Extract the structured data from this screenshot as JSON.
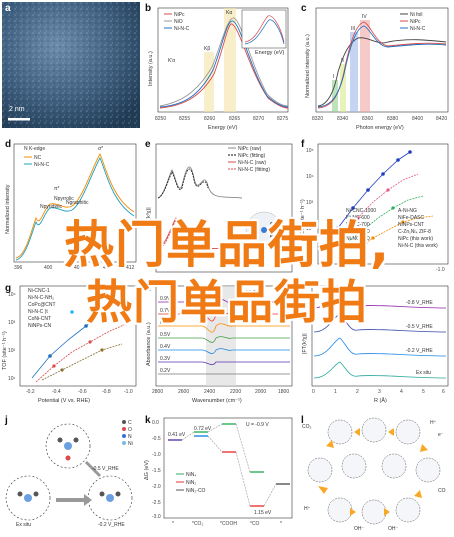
{
  "panels": {
    "a": {
      "label": "a",
      "scalebar": "2 nm"
    },
    "b": {
      "label": "b",
      "legend": [
        "NiPc",
        "NiO",
        "Ni-N-C"
      ],
      "peaks": [
        "Kα",
        "Kβ"
      ],
      "peak_labels": {
        "k_beta": "Kβ",
        "k_alpha": "Kα",
        "k_alpha_prime": "K'α"
      },
      "xlabel": "Energy (eV)",
      "ylabel": "Intensity (a.u.)",
      "xticks": [
        "8250",
        "8255",
        "8260",
        "8265",
        "8270",
        "8275"
      ],
      "inset_xlabel": "Energy (eV)"
    },
    "c": {
      "label": "c",
      "legend": [
        "Ni foil",
        "NiPc",
        "Ni-N-C"
      ],
      "roman": [
        "I",
        "II",
        "III",
        "IV"
      ],
      "xlabel": "Photon energy (eV)",
      "ylabel": "Normalized intensity (a.u.)",
      "xticks": [
        "8320",
        "8340",
        "8360",
        "8380",
        "8400",
        "8420"
      ]
    },
    "d": {
      "label": "d",
      "title": "N K-edge",
      "legend": [
        "NC",
        "Ni-N-C"
      ],
      "annotations": [
        "π*",
        "σ*",
        "Npyridinic",
        "Npyrrolic",
        "Ngraphitic"
      ],
      "xticks": [
        "396",
        "400",
        "404",
        "408",
        "412"
      ],
      "ylabel": "Normalized intensity"
    },
    "e": {
      "label": "e",
      "legend": [
        "NiPc (raw)",
        "NiPc (fitting)",
        "Ni-N-C (raw)",
        "Ni-N-C (fitting)"
      ],
      "ylabel": "|FT(k³χ)|"
    },
    "f": {
      "label": "f",
      "ylabel": "TOF (site⁻¹ h⁻¹)",
      "yticks": [
        "10⁵",
        "10⁴",
        "10³",
        "10²",
        "10¹"
      ],
      "xticks": [
        "-1.0"
      ],
      "legend_left": [
        "Ni-CNC-1000",
        "Ni-NC-600",
        "Ni-NC-700",
        "Ni-NC-800",
        "Ni-NC-900",
        "NiPc/CNT"
      ],
      "legend_right": [
        "A-Ni-NG",
        "NiFe-DASC",
        "NiNPs-CNT",
        "C-Zn₁Ni₄ ZIF-8",
        "NiPc (this work)",
        "Ni-N-C (this work)"
      ]
    },
    "g": {
      "label": "g",
      "legend": [
        "Ni-CNC-1",
        "Ni-N-C-NH₂",
        "CoPc@CNT",
        "Ni-N-C (t",
        "CoNi-CNT",
        "NiNPs-CN"
      ],
      "ylabel": "TOF (site⁻¹ h⁻¹)",
      "xlabel": "Potential (V vs. RHE)",
      "xticks": [
        "-0.2",
        "-0.4",
        "-0.6",
        "-0.8",
        "-1.0"
      ],
      "yticks": [
        "10⁴",
        "10³",
        "10²",
        "10¹"
      ]
    },
    "h": {
      "label": "h",
      "trace_labels": [
        "0.9V",
        "0.7V",
        "0.6V",
        "0.5V",
        "0.4V",
        "0.3V",
        "0.2V"
      ],
      "band_label": "Ni-CO",
      "ylabel": "Absorbance (a.u.)",
      "xlabel": "Wavenumber (cm⁻¹)",
      "xticks": [
        "2800",
        "2600",
        "2400",
        "2200",
        "2000",
        "1800"
      ]
    },
    "i": {
      "label": "i",
      "trace_labels": [
        "-0.8 V_RHE",
        "-0.5 V_RHE",
        "-0.2 V_RHE",
        "Ex situ"
      ],
      "ylabel": "|FT(k³χ)|",
      "xlabel": "R (Å)",
      "xticks": [
        "0",
        "1",
        "2",
        "3",
        "4",
        "5",
        "6"
      ]
    },
    "j": {
      "label": "j",
      "legend": [
        "C",
        "O",
        "N",
        "Ni"
      ],
      "labels": [
        "-0.5 V_RHE",
        "Ex situ",
        "-0.2 V_RHE"
      ]
    },
    "k": {
      "label": "k",
      "condition": "U = -0.9 V",
      "energies": [
        "0.72 eV",
        "0.41 eV",
        "1.15 eV"
      ],
      "legend": [
        "NiN₄",
        "NiN₂",
        "NiN₂-CO"
      ],
      "xticks": [
        "*",
        "*CO₂",
        "*COOH",
        "*CO",
        "*"
      ],
      "ylabel": "ΔG (eV)",
      "yticks": [
        "0.0",
        "-0.5",
        "-1.0",
        "-1.5",
        "-2.0",
        "-2.5",
        "-3.0"
      ]
    },
    "l": {
      "label": "l",
      "species": [
        "CO₂",
        "H⁺",
        "e⁻",
        "CO",
        "OH⁻",
        "OH⁻",
        "H⁺"
      ]
    }
  },
  "overlay": {
    "line1": "热门单品街拍,",
    "line2": "热门单品街拍"
  },
  "colors": {
    "overlay": "#f07a14",
    "nipc": "#d94a4a",
    "nio": "#999999",
    "ninc": "#1f6fbf"
  }
}
